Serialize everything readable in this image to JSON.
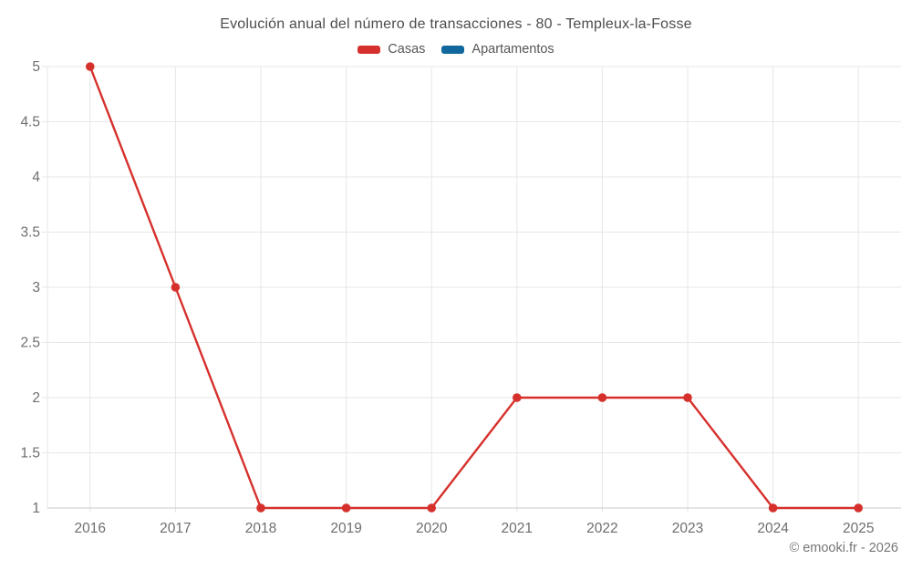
{
  "title": "Evolución anual del número de transacciones - 80 - Templeux-la-Fosse",
  "legend": {
    "items": [
      {
        "label": "Casas",
        "color": "#d6302c"
      },
      {
        "label": "Apartamentos",
        "color": "#11689e"
      }
    ]
  },
  "footer": {
    "credit": "© emooki.fr - 2026"
  },
  "colors": {
    "grid": "#e7e7e7",
    "axis_line": "#c9c9c9",
    "tick_label": "#6e6e6e"
  },
  "chart_data": {
    "type": "line",
    "title": "Evolución anual del número de transacciones - 80 - Templeux-la-Fosse",
    "categories": [
      "2016",
      "2017",
      "2018",
      "2019",
      "2020",
      "2021",
      "2022",
      "2023",
      "2024",
      "2025"
    ],
    "series": [
      {
        "name": "Casas",
        "color": "#d6302c",
        "values": [
          5,
          3,
          1,
          1,
          1,
          2,
          2,
          2,
          1,
          1
        ]
      },
      {
        "name": "Apartamentos",
        "color": "#11689e",
        "values": []
      }
    ],
    "xlabel": "",
    "ylabel": "",
    "ylim": [
      1,
      5
    ],
    "yticks": [
      1,
      1.5,
      2,
      2.5,
      3,
      3.5,
      4,
      4.5,
      5
    ],
    "ytick_labels": [
      "1",
      "1.5",
      "2",
      "2.5",
      "3",
      "3.5",
      "4",
      "4.5",
      "5"
    ],
    "grid": true,
    "legend_position": "top"
  }
}
